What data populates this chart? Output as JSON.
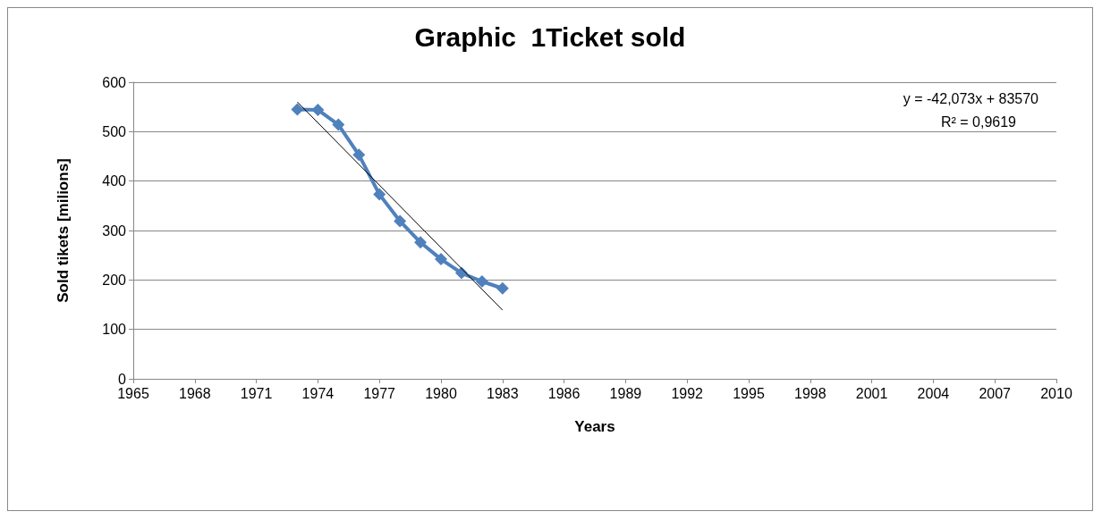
{
  "chart_data": {
    "type": "line",
    "title": "Graphic  1Ticket sold",
    "xlabel": "Years",
    "ylabel": "Sold tikets [milions]",
    "x": [
      1973,
      1974,
      1975,
      1976,
      1977,
      1978,
      1979,
      1980,
      1981,
      1982,
      1983
    ],
    "series": [
      {
        "color": "#4f81bd",
        "values": [
          545,
          544,
          514,
          453,
          373,
          319,
          276,
          242,
          214,
          197,
          183
        ],
        "marker": "diamond"
      },
      {
        "type": "line",
        "color": "#000000",
        "x": [
          1973,
          1983
        ],
        "values": [
          560,
          139
        ],
        "marker": "none"
      }
    ],
    "xlim": [
      1965,
      2010
    ],
    "xticks": [
      1965,
      1968,
      1971,
      1974,
      1977,
      1980,
      1983,
      1986,
      1989,
      1992,
      1995,
      1998,
      2001,
      2004,
      2007,
      2010
    ],
    "ylim": [
      0,
      600
    ],
    "yticks": [
      0,
      100,
      200,
      300,
      400,
      500,
      600
    ],
    "grid": "y",
    "annotations": [
      "y = -42,073x + 83570",
      "R² = 0,9619"
    ]
  }
}
